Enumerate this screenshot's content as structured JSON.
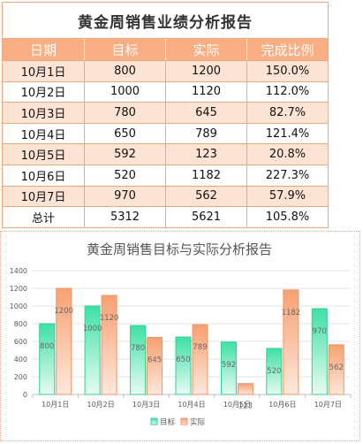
{
  "table": {
    "title": "黄金周销售业绩分析报告",
    "headers": [
      "日期",
      "目标",
      "实际",
      "完成比例"
    ],
    "rows": [
      {
        "date": "10月1日",
        "target": "800",
        "actual": "1200",
        "ratio": "150.0%"
      },
      {
        "date": "10月2日",
        "target": "1000",
        "actual": "1120",
        "ratio": "112.0%"
      },
      {
        "date": "10月3日",
        "target": "780",
        "actual": "645",
        "ratio": "82.7%"
      },
      {
        "date": "10月4日",
        "target": "650",
        "actual": "789",
        "ratio": "121.4%"
      },
      {
        "date": "10月5日",
        "target": "592",
        "actual": "123",
        "ratio": "20.8%"
      },
      {
        "date": "10月6日",
        "target": "520",
        "actual": "1182",
        "ratio": "227.3%"
      },
      {
        "date": "10月7日",
        "target": "970",
        "actual": "562",
        "ratio": "57.9%"
      }
    ],
    "total": {
      "label": "总计",
      "target": "5312",
      "actual": "5621",
      "ratio": "105.8%"
    }
  },
  "chart_data": {
    "type": "bar",
    "title": "黄金周销售目标与实际分析报告",
    "categories": [
      "10月1日",
      "10月2日",
      "10月3日",
      "10月4日",
      "10月5日",
      "10月6日",
      "10月7日"
    ],
    "series": [
      {
        "name": "目标",
        "values": [
          800,
          1000,
          780,
          650,
          592,
          520,
          970
        ],
        "color": "#5fe3b0"
      },
      {
        "name": "实际",
        "values": [
          1200,
          1120,
          645,
          789,
          123,
          1182,
          562
        ],
        "color": "#f7a47a"
      }
    ],
    "ylim": [
      0,
      1400
    ],
    "yticks": [
      0,
      200,
      400,
      600,
      800,
      1000,
      1200,
      1400
    ],
    "grid": true,
    "legend": "bottom",
    "data_labels": true
  }
}
